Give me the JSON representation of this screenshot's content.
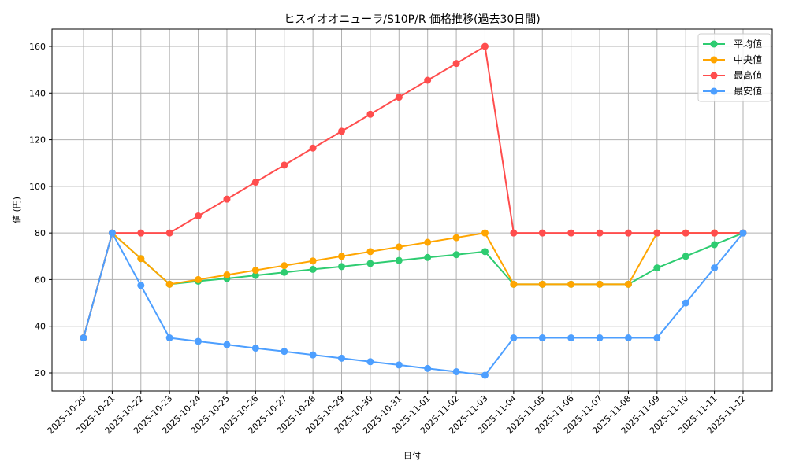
{
  "chart_data": {
    "type": "line",
    "title": "ヒスイオオニューラ/S10P/R 価格推移(過去30日間)",
    "xlabel": "日付",
    "ylabel": "値 (円)",
    "ylim": [
      12.5,
      167
    ],
    "yticks": [
      20,
      40,
      60,
      80,
      100,
      120,
      140,
      160
    ],
    "grid": true,
    "legend_position": "upper right",
    "categories": [
      "2025-10-20",
      "2025-10-21",
      "2025-10-22",
      "2025-10-23",
      "2025-10-24",
      "2025-10-25",
      "2025-10-26",
      "2025-10-27",
      "2025-10-28",
      "2025-10-29",
      "2025-10-30",
      "2025-10-31",
      "2025-11-01",
      "2025-11-02",
      "2025-11-03",
      "2025-11-04",
      "2025-11-05",
      "2025-11-06",
      "2025-11-07",
      "2025-11-08",
      "2025-11-09",
      "2025-11-10",
      "2025-11-11",
      "2025-11-12"
    ],
    "series": [
      {
        "name": "平均値",
        "color": "#2ecc71",
        "values": [
          35,
          80,
          69,
          58,
          59.3,
          60.5,
          61.8,
          63.1,
          64.4,
          65.6,
          66.9,
          68.2,
          69.5,
          70.7,
          72,
          58,
          58,
          58,
          58,
          58,
          65,
          70,
          75,
          80
        ]
      },
      {
        "name": "中央値",
        "color": "#ffa500",
        "values": [
          35,
          80,
          69,
          58,
          60,
          62,
          64,
          66,
          68,
          70,
          72,
          74,
          76,
          78,
          80,
          58,
          58,
          58,
          58,
          58,
          80,
          80,
          80,
          80
        ]
      },
      {
        "name": "最高値",
        "color": "#ff4d4d",
        "values": [
          35,
          80,
          80,
          80,
          87.3,
          94.5,
          101.8,
          109.1,
          116.4,
          123.6,
          130.9,
          138.2,
          145.5,
          152.7,
          160,
          80,
          80,
          80,
          80,
          80,
          80,
          80,
          80,
          80
        ]
      },
      {
        "name": "最安値",
        "color": "#4d9fff",
        "values": [
          35,
          80,
          57.5,
          35,
          33.5,
          32.1,
          30.6,
          29.2,
          27.7,
          26.3,
          24.8,
          23.4,
          21.9,
          20.5,
          19,
          35,
          35,
          35,
          35,
          35,
          35,
          50,
          65,
          80
        ]
      }
    ]
  }
}
